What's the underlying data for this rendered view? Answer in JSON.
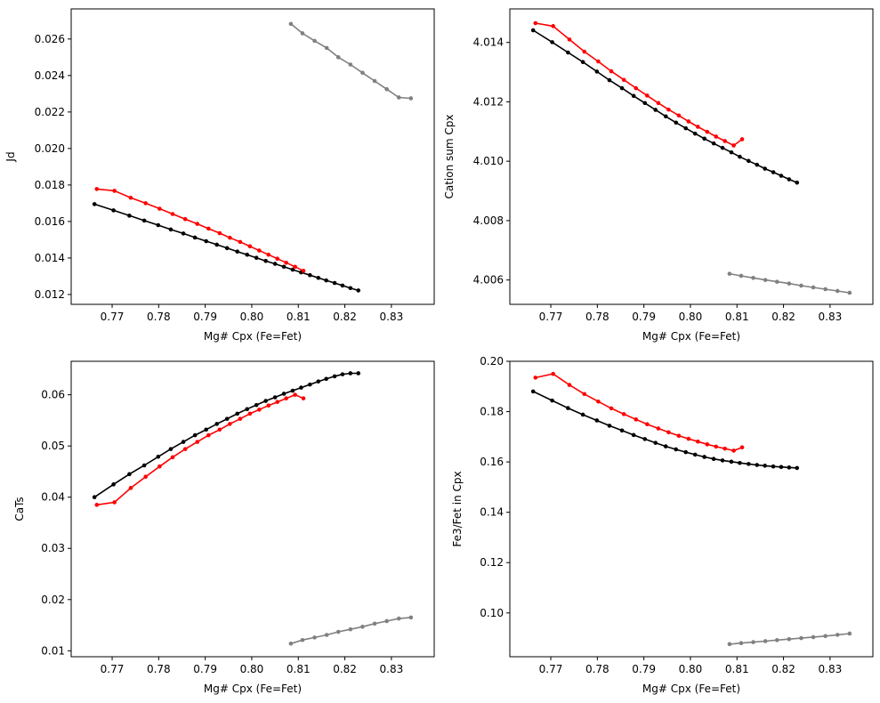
{
  "colors": {
    "black_series": "#000000",
    "red_series": "#ff0000",
    "gray_series": "#808080"
  },
  "chart_data": [
    {
      "type": "line",
      "xlabel": "Mg# Cpx (Fe=Fet)",
      "ylabel": "Jd",
      "xlim": [
        0.7612,
        0.8392
      ],
      "ylim": [
        0.01146,
        0.02765
      ],
      "xticks": [
        0.77,
        0.78,
        0.79,
        0.8,
        0.81,
        0.82,
        0.83
      ],
      "xtick_labels": [
        "0.77",
        "0.78",
        "0.79",
        "0.80",
        "0.81",
        "0.82",
        "0.83"
      ],
      "yticks": [
        0.012,
        0.014,
        0.016,
        0.018,
        0.02,
        0.022,
        0.024,
        0.026
      ],
      "ytick_labels": [
        "0.012",
        "0.014",
        "0.016",
        "0.018",
        "0.020",
        "0.022",
        "0.024",
        "0.026"
      ],
      "series": [
        {
          "color": "#000000",
          "x": [
            0.7662,
            0.7703,
            0.7737,
            0.7769,
            0.7799,
            0.7826,
            0.7853,
            0.7878,
            0.7902,
            0.7925,
            0.7947,
            0.7969,
            0.799,
            0.801,
            0.803,
            0.805,
            0.8069,
            0.8088,
            0.8106,
            0.8125,
            0.8143,
            0.816,
            0.8178,
            0.8195,
            0.8212,
            0.8229
          ],
          "y": [
            0.01695,
            0.01661,
            0.01632,
            0.01605,
            0.0158,
            0.01556,
            0.01534,
            0.01512,
            0.01492,
            0.01473,
            0.01454,
            0.01435,
            0.01418,
            0.01401,
            0.01384,
            0.01368,
            0.01352,
            0.01336,
            0.01321,
            0.01306,
            0.01291,
            0.01277,
            0.01263,
            0.01249,
            0.01235,
            0.01222
          ]
        },
        {
          "color": "#ff0000",
          "x": [
            0.7667,
            0.7705,
            0.774,
            0.7772,
            0.7802,
            0.783,
            0.7857,
            0.7883,
            0.7907,
            0.7931,
            0.7953,
            0.7975,
            0.7996,
            0.8016,
            0.8036,
            0.8055,
            0.8074,
            0.8093,
            0.8111
          ],
          "y": [
            0.01778,
            0.01768,
            0.0173,
            0.017,
            0.0167,
            0.01641,
            0.01613,
            0.01587,
            0.01561,
            0.01536,
            0.01511,
            0.01488,
            0.01464,
            0.01441,
            0.01418,
            0.01396,
            0.01374,
            0.01352,
            0.0133
          ]
        },
        {
          "color": "#808080",
          "x": [
            0.8084,
            0.8109,
            0.8135,
            0.8161,
            0.8186,
            0.8212,
            0.8238,
            0.8264,
            0.829,
            0.8316,
            0.8342
          ],
          "y": [
            0.02683,
            0.02631,
            0.0259,
            0.02551,
            0.025,
            0.0246,
            0.02415,
            0.0237,
            0.02325,
            0.0228,
            0.02275
          ]
        }
      ]
    },
    {
      "type": "line",
      "xlabel": "Mg# Cpx (Fe=Fet)",
      "ylabel": "Cation sum Cpx",
      "xlim": [
        0.7612,
        0.8392
      ],
      "ylim": [
        4.00518,
        4.01513
      ],
      "xticks": [
        0.77,
        0.78,
        0.79,
        0.8,
        0.81,
        0.82,
        0.83
      ],
      "xtick_labels": [
        "0.77",
        "0.78",
        "0.79",
        "0.80",
        "0.81",
        "0.82",
        "0.83"
      ],
      "yticks": [
        4.006,
        4.008,
        4.01,
        4.012,
        4.014
      ],
      "ytick_labels": [
        "4.006",
        "4.008",
        "4.010",
        "4.012",
        "4.014"
      ],
      "series": [
        {
          "color": "#000000",
          "x": [
            0.7662,
            0.7703,
            0.7737,
            0.7769,
            0.7799,
            0.7826,
            0.7853,
            0.7878,
            0.7902,
            0.7925,
            0.7947,
            0.7969,
            0.799,
            0.801,
            0.803,
            0.805,
            0.8069,
            0.8088,
            0.8106,
            0.8125,
            0.8143,
            0.816,
            0.8178,
            0.8195,
            0.8212,
            0.8229
          ],
          "y": [
            4.01441,
            4.01401,
            4.01366,
            4.01334,
            4.01302,
            4.01273,
            4.01246,
            4.0122,
            4.01196,
            4.01173,
            4.01151,
            4.0113,
            4.01111,
            4.01093,
            4.01076,
            4.0106,
            4.01045,
            4.0103,
            4.01015,
            4.01001,
            4.00988,
            4.00975,
            4.00963,
            4.00951,
            4.00939,
            4.00928
          ]
        },
        {
          "color": "#ff0000",
          "x": [
            0.7667,
            0.7705,
            0.774,
            0.7772,
            0.7802,
            0.783,
            0.7857,
            0.7883,
            0.7907,
            0.7931,
            0.7953,
            0.7975,
            0.7996,
            0.8016,
            0.8036,
            0.8055,
            0.8074,
            0.8093,
            0.8111
          ],
          "y": [
            4.01465,
            4.01455,
            4.0141,
            4.01369,
            4.01336,
            4.01303,
            4.01274,
            4.01246,
            4.01221,
            4.01196,
            4.01174,
            4.01154,
            4.01134,
            4.01116,
            4.01099,
            4.01083,
            4.01068,
            4.01053,
            4.01074
          ]
        },
        {
          "color": "#808080",
          "x": [
            0.8084,
            0.8109,
            0.8135,
            0.8161,
            0.8186,
            0.8212,
            0.8238,
            0.8264,
            0.829,
            0.8316,
            0.8342
          ],
          "y": [
            4.00621,
            4.00614,
            4.00607,
            4.006,
            4.00594,
            4.00588,
            4.00581,
            4.00575,
            4.00569,
            4.00563,
            4.00557
          ]
        }
      ]
    },
    {
      "type": "line",
      "xlabel": "Mg# Cpx (Fe=Fet)",
      "ylabel": "CaTs",
      "xlim": [
        0.7612,
        0.8392
      ],
      "ylim": [
        0.00884,
        0.06654
      ],
      "xticks": [
        0.77,
        0.78,
        0.79,
        0.8,
        0.81,
        0.82,
        0.83
      ],
      "xtick_labels": [
        "0.77",
        "0.78",
        "0.79",
        "0.80",
        "0.81",
        "0.82",
        "0.83"
      ],
      "yticks": [
        0.01,
        0.02,
        0.03,
        0.04,
        0.05,
        0.06
      ],
      "ytick_labels": [
        "0.01",
        "0.02",
        "0.03",
        "0.04",
        "0.05",
        "0.06"
      ],
      "series": [
        {
          "color": "#000000",
          "x": [
            0.7662,
            0.7703,
            0.7737,
            0.7769,
            0.7799,
            0.7826,
            0.7853,
            0.7878,
            0.7902,
            0.7925,
            0.7947,
            0.7969,
            0.799,
            0.801,
            0.803,
            0.805,
            0.8069,
            0.8088,
            0.8106,
            0.8125,
            0.8143,
            0.816,
            0.8178,
            0.8195,
            0.8212,
            0.8229
          ],
          "y": [
            0.04,
            0.0425,
            0.0445,
            0.0462,
            0.0479,
            0.0494,
            0.0508,
            0.0521,
            0.0532,
            0.0543,
            0.0553,
            0.0563,
            0.0572,
            0.058,
            0.0588,
            0.0595,
            0.0602,
            0.0608,
            0.0614,
            0.062,
            0.0626,
            0.0631,
            0.0636,
            0.064,
            0.0642,
            0.0642
          ]
        },
        {
          "color": "#ff0000",
          "x": [
            0.7667,
            0.7705,
            0.774,
            0.7772,
            0.7802,
            0.783,
            0.7857,
            0.7883,
            0.7907,
            0.7931,
            0.7953,
            0.7975,
            0.7996,
            0.8016,
            0.8036,
            0.8055,
            0.8074,
            0.8093,
            0.8111
          ],
          "y": [
            0.0385,
            0.039,
            0.0418,
            0.044,
            0.046,
            0.0478,
            0.0494,
            0.0508,
            0.0521,
            0.0532,
            0.0543,
            0.0553,
            0.0563,
            0.0571,
            0.0579,
            0.0586,
            0.0593,
            0.06,
            0.0593
          ]
        },
        {
          "color": "#808080",
          "x": [
            0.8084,
            0.8109,
            0.8135,
            0.8161,
            0.8186,
            0.8212,
            0.8238,
            0.8264,
            0.829,
            0.8316,
            0.8342
          ],
          "y": [
            0.0114,
            0.0121,
            0.0126,
            0.0131,
            0.0137,
            0.0142,
            0.0147,
            0.0153,
            0.0158,
            0.0163,
            0.0165
          ]
        }
      ]
    },
    {
      "type": "line",
      "xlabel": "Mg# Cpx (Fe=Fet)",
      "ylabel": "Fe3/Fet in Cpx",
      "xlim": [
        0.7612,
        0.8392
      ],
      "ylim": [
        0.0826,
        0.2
      ],
      "xticks": [
        0.77,
        0.78,
        0.79,
        0.8,
        0.81,
        0.82,
        0.83
      ],
      "xtick_labels": [
        "0.77",
        "0.78",
        "0.79",
        "0.80",
        "0.81",
        "0.82",
        "0.83"
      ],
      "yticks": [
        0.1,
        0.12,
        0.14,
        0.16,
        0.18,
        0.2
      ],
      "ytick_labels": [
        "0.10",
        "0.12",
        "0.14",
        "0.16",
        "0.18",
        "0.20"
      ],
      "series": [
        {
          "color": "#000000",
          "x": [
            0.7662,
            0.7703,
            0.7737,
            0.7769,
            0.7799,
            0.7826,
            0.7853,
            0.7878,
            0.7902,
            0.7925,
            0.7947,
            0.7969,
            0.799,
            0.801,
            0.803,
            0.805,
            0.8069,
            0.8088,
            0.8106,
            0.8125,
            0.8143,
            0.816,
            0.8178,
            0.8195,
            0.8212,
            0.8229
          ],
          "y": [
            0.188,
            0.1844,
            0.1814,
            0.1788,
            0.1765,
            0.1744,
            0.1725,
            0.1707,
            0.1691,
            0.1676,
            0.1662,
            0.165,
            0.1639,
            0.1629,
            0.162,
            0.1612,
            0.1606,
            0.1601,
            0.1596,
            0.1592,
            0.1588,
            0.1585,
            0.1582,
            0.158,
            0.1578,
            0.1576
          ]
        },
        {
          "color": "#ff0000",
          "x": [
            0.7667,
            0.7705,
            0.774,
            0.7772,
            0.7802,
            0.783,
            0.7857,
            0.7883,
            0.7907,
            0.7931,
            0.7953,
            0.7975,
            0.7996,
            0.8016,
            0.8036,
            0.8055,
            0.8074,
            0.8093,
            0.8111
          ],
          "y": [
            0.1935,
            0.195,
            0.1906,
            0.187,
            0.184,
            0.1813,
            0.179,
            0.1769,
            0.175,
            0.1733,
            0.1718,
            0.1704,
            0.1692,
            0.1681,
            0.167,
            0.1661,
            0.1653,
            0.1645,
            0.1658
          ]
        },
        {
          "color": "#808080",
          "x": [
            0.8084,
            0.8109,
            0.8135,
            0.8161,
            0.8186,
            0.8212,
            0.8238,
            0.8264,
            0.829,
            0.8316,
            0.8342
          ],
          "y": [
            0.0876,
            0.088,
            0.0884,
            0.0888,
            0.0892,
            0.0896,
            0.09,
            0.0904,
            0.0908,
            0.0913,
            0.0918
          ]
        }
      ]
    }
  ]
}
